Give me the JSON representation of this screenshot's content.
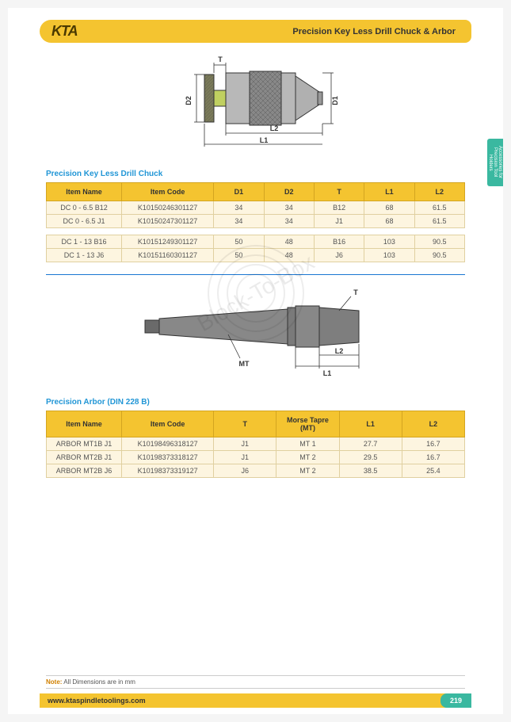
{
  "logo": "KTA",
  "title": "Precision Key Less Drill Chuck & Arbor",
  "side_tab": "Accessories for Precision Tool Holders",
  "section1": {
    "title": "Precision Key Less Drill Chuck",
    "headers": [
      "Item Name",
      "Item Code",
      "D1",
      "D2",
      "T",
      "L1",
      "L2"
    ],
    "col_widths": [
      "18%",
      "22%",
      "12%",
      "12%",
      "12%",
      "12%",
      "12%"
    ],
    "group1": [
      [
        "DC 0 - 6.5 B12",
        "K10150246301127",
        "34",
        "34",
        "B12",
        "68",
        "61.5"
      ],
      [
        "DC 0 - 6.5 J1",
        "K10150247301127",
        "34",
        "34",
        "J1",
        "68",
        "61.5"
      ]
    ],
    "group2": [
      [
        "DC 1 - 13 B16",
        "K10151249301127",
        "50",
        "48",
        "B16",
        "103",
        "90.5"
      ],
      [
        "DC 1 - 13 J6",
        "K10151160301127",
        "50",
        "48",
        "J6",
        "103",
        "90.5"
      ]
    ]
  },
  "section2": {
    "title": "Precision Arbor (DIN 228 B)",
    "headers": [
      "Item Name",
      "Item Code",
      "T",
      "Morse Tapre (MT)",
      "L1",
      "L2"
    ],
    "col_widths": [
      "18%",
      "22%",
      "15%",
      "15%",
      "15%",
      "15%"
    ],
    "rows": [
      [
        "ARBOR MT1B J1",
        "K10198496318127",
        "J1",
        "MT 1",
        "27.7",
        "16.7"
      ],
      [
        "ARBOR MT2B J1",
        "K10198373318127",
        "J1",
        "MT 2",
        "29.5",
        "16.7"
      ],
      [
        "ARBOR MT2B J6",
        "K10198373319127",
        "J6",
        "MT 2",
        "38.5",
        "25.4"
      ]
    ]
  },
  "diagram1_labels": {
    "T": "T",
    "D1": "D1",
    "D2": "D2",
    "L1": "L1",
    "L2": "L2"
  },
  "diagram2_labels": {
    "T": "T",
    "MT": "MT",
    "L1": "L1",
    "L2": "L2"
  },
  "note_prefix": "Note:",
  "note_text": " All Dimensions are in mm",
  "footer_url": "www.ktaspindletoolings.com",
  "page_number": "219",
  "watermark": "Block-To-Box",
  "colors": {
    "brand_yellow": "#f4c430",
    "accent_teal": "#3ab8a0",
    "link_blue": "#2196d6",
    "divider_blue": "#1976d2"
  }
}
